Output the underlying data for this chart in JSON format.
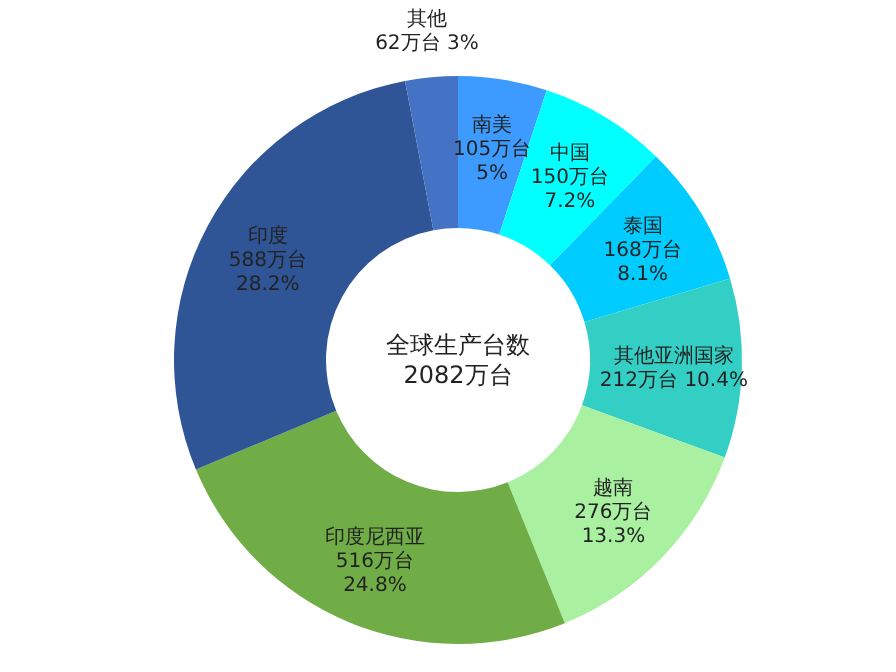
{
  "chart_data": {
    "type": "donut",
    "categories": [
      "南美",
      "中国",
      "泰国",
      "其他亚洲国家",
      "越南",
      "印度尼西亚",
      "印度",
      "其他"
    ],
    "values": [
      105,
      150,
      168,
      212,
      276,
      516,
      588,
      62
    ],
    "colors": [
      "#3d9bff",
      "#00ffff",
      "#00ccff",
      "#33cfc4",
      "#a9f1a0",
      "#70ad47",
      "#2f5597",
      "#4472c4"
    ],
    "value_labels": [
      "105万台\n5%",
      "150万台\n7.2%",
      "168万台\n8.1%",
      "212万台 10.4%",
      "276万台\n13.3%",
      "516万台\n24.8%",
      "588万台\n28.2%",
      "62万台  3%"
    ],
    "annotations": [
      "全球生产台数",
      "2082万台"
    ]
  }
}
